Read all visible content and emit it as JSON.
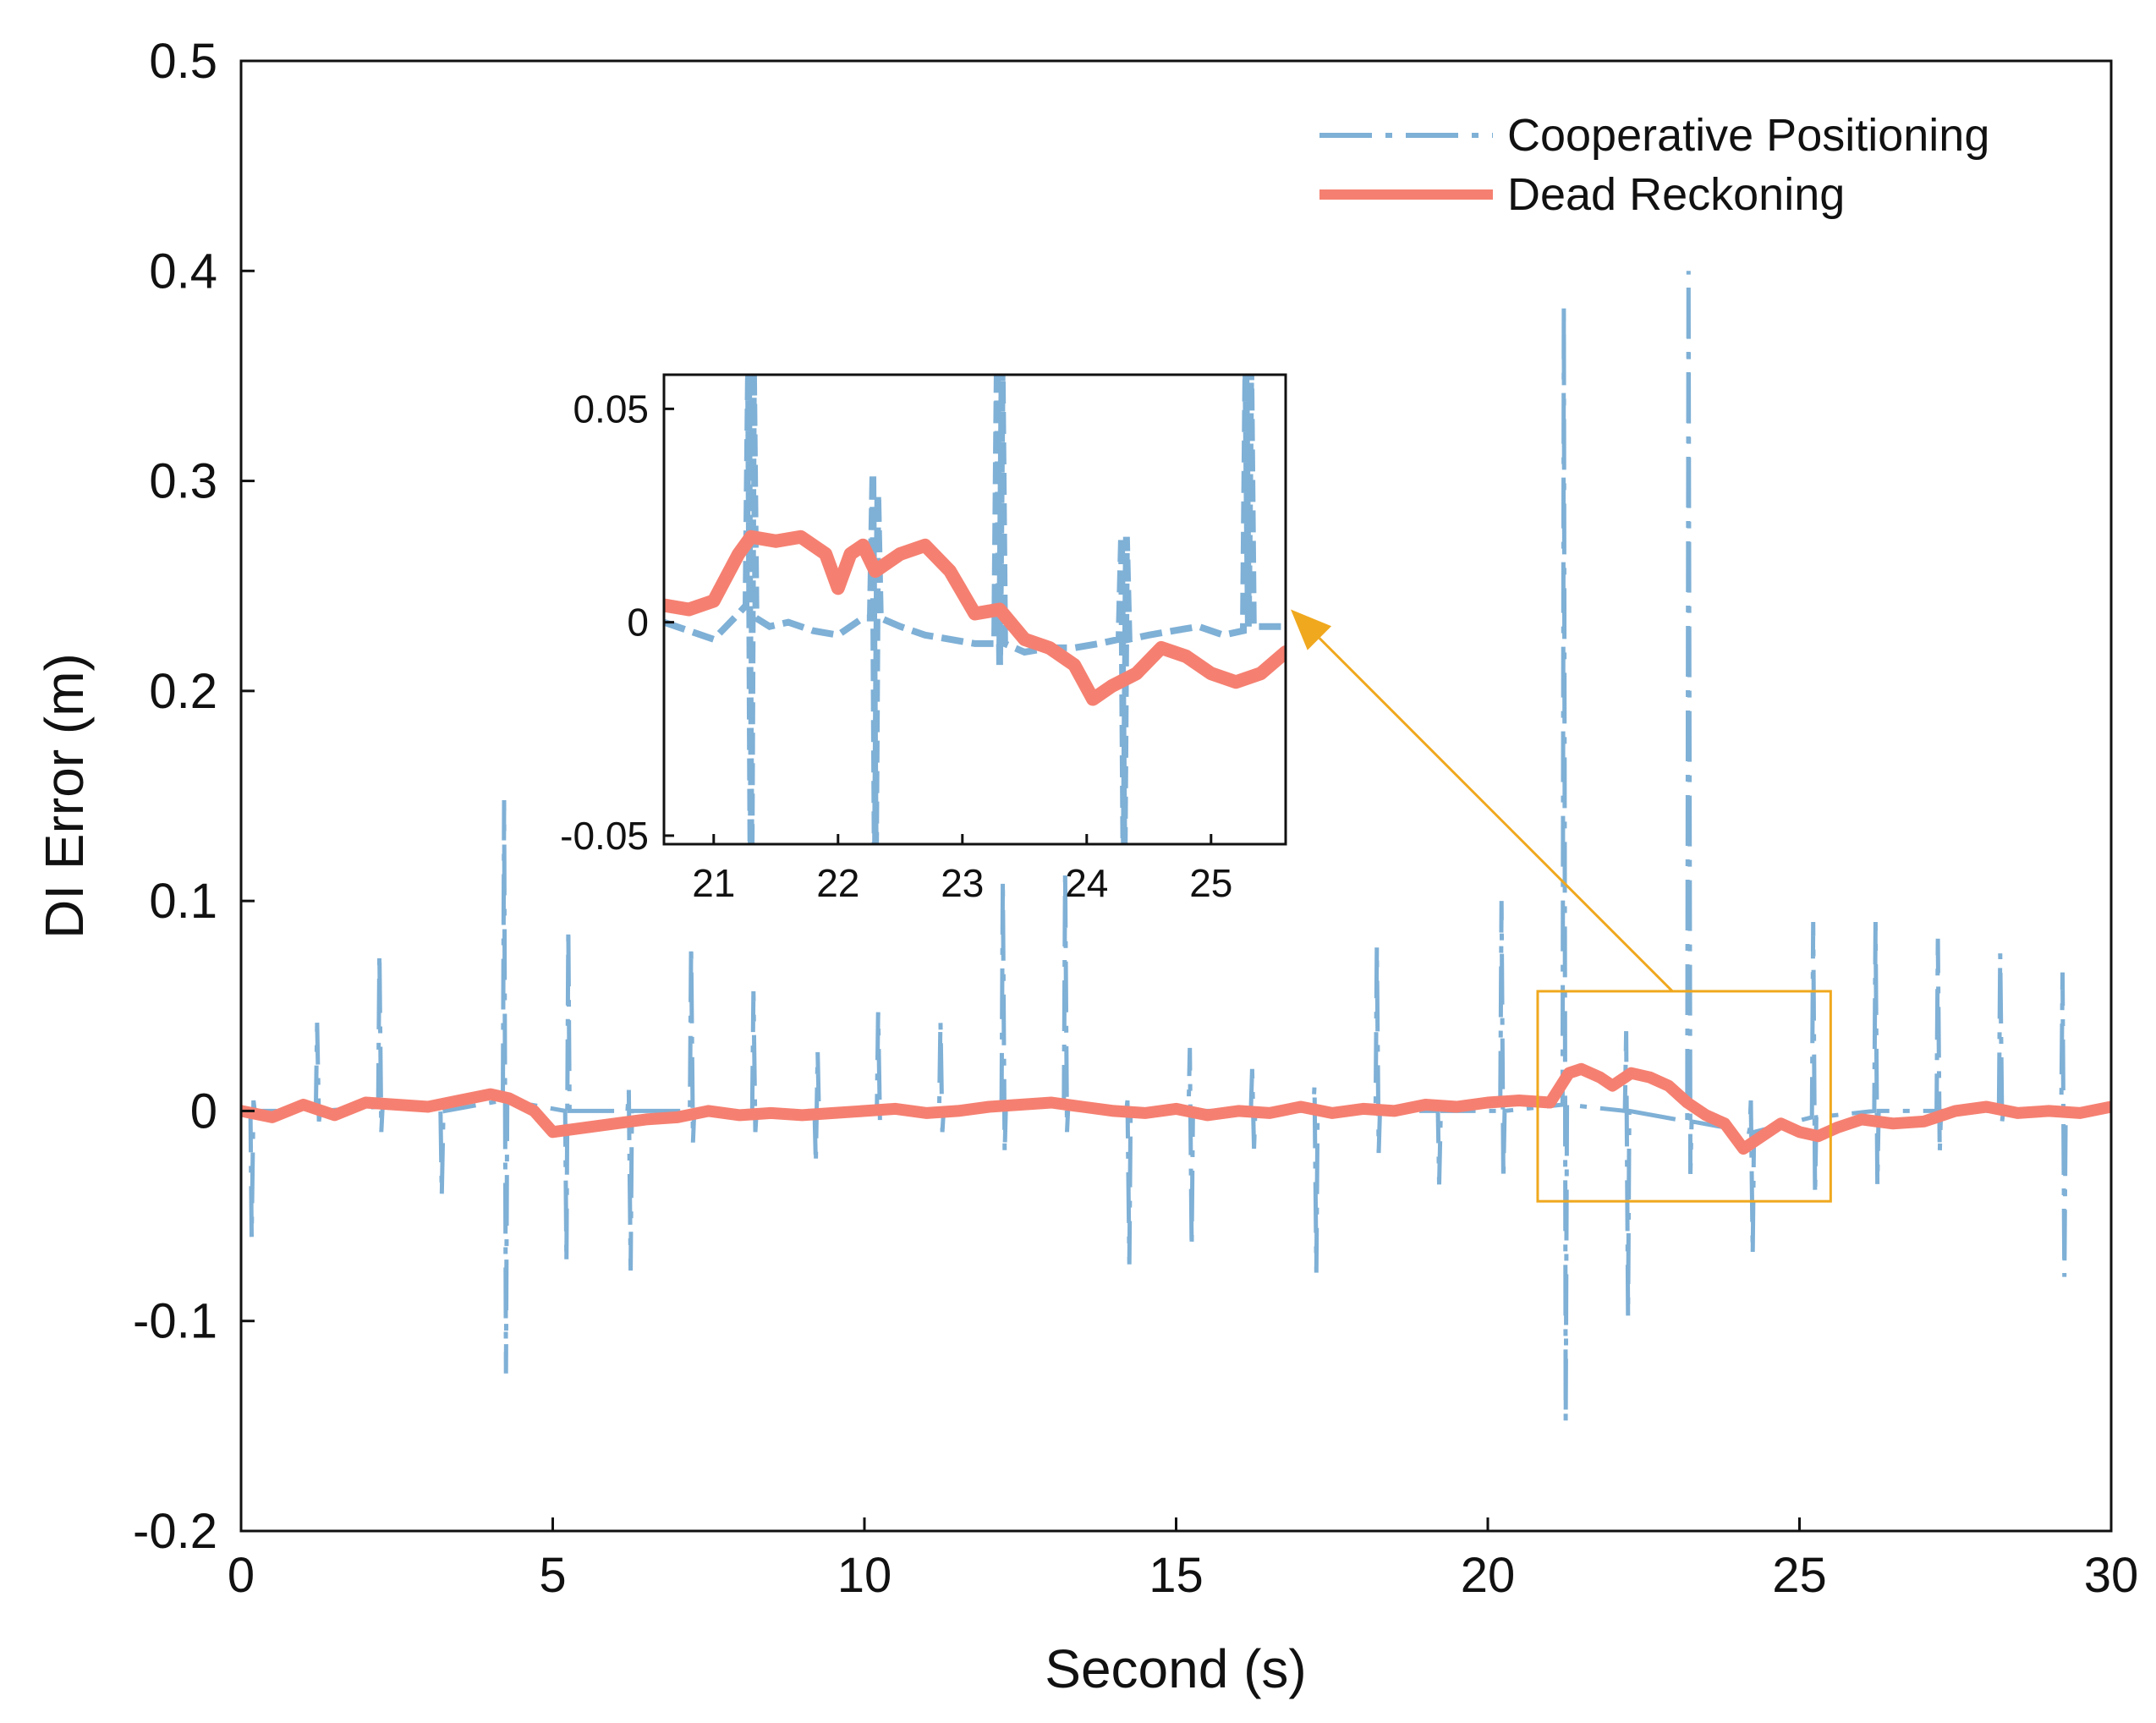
{
  "colors": {
    "cooperative": "#7fb0d6",
    "dead_reckoning": "#f58071",
    "zoom_box": "#f0a81e",
    "axis": "#111111"
  },
  "chart_data": [
    {
      "id": "main",
      "type": "line",
      "xlabel": "Second (s)",
      "ylabel": "DI Error (m)",
      "xlim": [
        0,
        30
      ],
      "ylim": [
        -0.2,
        0.5
      ],
      "xticks": [
        0,
        5,
        10,
        15,
        20,
        25,
        30
      ],
      "xtick_labels": [
        "0",
        "5",
        "10",
        "15",
        "20",
        "25",
        "30"
      ],
      "yticks": [
        -0.2,
        -0.1,
        0,
        0.1,
        0.2,
        0.3,
        0.4,
        0.5
      ],
      "ytick_labels": [
        "-0.2",
        "-0.1",
        "0",
        "0.1",
        "0.2",
        "0.3",
        "0.4",
        "0.5"
      ],
      "legend": {
        "position": "top-right",
        "entries": [
          "Cooperative Positioning",
          "Dead Reckoning"
        ]
      },
      "series": [
        {
          "name": "Cooperative Positioning",
          "style": "dash-dot",
          "x": [
            0,
            0.15,
            0.17,
            0.2,
            0.22,
            1.2,
            1.22,
            1.25,
            1.27,
            2.2,
            2.22,
            2.25,
            2.27,
            3.2,
            3.22,
            3.25,
            3.27,
            4.2,
            4.22,
            4.25,
            4.27,
            5.2,
            5.22,
            5.25,
            5.27,
            6.2,
            6.22,
            6.25,
            6.27,
            7.2,
            7.22,
            7.25,
            7.27,
            8.2,
            8.22,
            8.25,
            8.27,
            9.2,
            9.22,
            9.25,
            9.27,
            10.2,
            10.22,
            10.25,
            10.27,
            11.2,
            11.22,
            11.25,
            11.27,
            12.2,
            12.22,
            12.25,
            12.27,
            13.2,
            13.22,
            13.25,
            13.27,
            14.2,
            14.22,
            14.25,
            14.27,
            15.2,
            15.22,
            15.25,
            15.27,
            16.2,
            16.22,
            16.25,
            16.27,
            17.2,
            17.22,
            17.25,
            17.27,
            18.2,
            18.22,
            18.25,
            18.27,
            19.2,
            19.22,
            19.25,
            19.27,
            20.2,
            20.22,
            20.25,
            20.27,
            21.2,
            21.22,
            21.25,
            21.27,
            22.2,
            22.22,
            22.25,
            22.27,
            23.2,
            23.22,
            23.25,
            23.27,
            24.2,
            24.22,
            24.25,
            24.27,
            25.2,
            25.22,
            25.25,
            25.27,
            26.2,
            26.22,
            26.25,
            26.27,
            27.2,
            27.22,
            27.25,
            27.27,
            28.2,
            28.22,
            28.25,
            28.27,
            29.2,
            29.22,
            29.25,
            29.27,
            30
          ],
          "y": [
            0,
            0,
            -0.06,
            0.005,
            0,
            0,
            0.042,
            -0.005,
            0,
            0.002,
            0.075,
            -0.01,
            0.002,
            0,
            -0.04,
            0.005,
            0,
            0.005,
            0.148,
            -0.125,
            0.005,
            0,
            -0.072,
            0.087,
            0,
            0,
            0.01,
            -0.076,
            0,
            0,
            0.079,
            -0.015,
            0,
            0,
            0.057,
            -0.01,
            0,
            0,
            -0.025,
            0.028,
            0,
            0,
            0.047,
            -0.005,
            0,
            0,
            0.043,
            -0.01,
            0,
            0.003,
            0.11,
            -0.02,
            0.003,
            0.003,
            0.115,
            -0.01,
            0.003,
            0,
            0.005,
            -0.073,
            0,
            0,
            0.03,
            -0.065,
            0,
            0,
            0.02,
            -0.018,
            0,
            0,
            0.012,
            -0.077,
            0,
            0,
            0.078,
            -0.02,
            0,
            0,
            -0.035,
            0.005,
            0,
            0,
            0.1,
            -0.033,
            0,
            0.003,
            0.384,
            -0.148,
            0.003,
            0,
            0.038,
            -0.098,
            0,
            -0.005,
            0.4,
            -0.03,
            -0.005,
            -0.01,
            0.005,
            -0.068,
            -0.01,
            -0.003,
            0.09,
            -0.04,
            -0.003,
            0,
            0.09,
            -0.035,
            0,
            0,
            0.082,
            -0.02,
            0,
            0,
            0.075,
            -0.005,
            0,
            0,
            0.066,
            -0.079,
            0,
            0
          ]
        },
        {
          "name": "Dead Reckoning",
          "style": "solid",
          "x": [
            0,
            0.5,
            1,
            1.5,
            2,
            2.5,
            3,
            3.5,
            4,
            4.3,
            4.7,
            5,
            5.5,
            6,
            6.5,
            7,
            7.5,
            8,
            8.5,
            9,
            9.5,
            10,
            10.5,
            11,
            11.5,
            12,
            12.5,
            13,
            13.5,
            14,
            14.5,
            15,
            15.5,
            16,
            16.5,
            17,
            17.5,
            18,
            18.5,
            19,
            19.5,
            20,
            20.5,
            21,
            21.3,
            21.5,
            21.8,
            22,
            22.3,
            22.6,
            22.9,
            23.2,
            23.5,
            23.8,
            24.1,
            24.4,
            24.7,
            25,
            25.3,
            25.6,
            26,
            26.5,
            27,
            27.5,
            28,
            28.5,
            29,
            29.5,
            30
          ],
          "y": [
            0,
            -0.003,
            0.003,
            -0.002,
            0.004,
            0.003,
            0.002,
            0.005,
            0.008,
            0.006,
            0,
            -0.01,
            -0.008,
            -0.006,
            -0.004,
            -0.003,
            0,
            -0.002,
            -0.001,
            -0.002,
            -0.001,
            0,
            0.001,
            -0.001,
            0,
            0.002,
            0.003,
            0.004,
            0.002,
            0,
            -0.001,
            0.001,
            -0.002,
            0,
            -0.001,
            0.002,
            -0.001,
            0.001,
            0,
            0.003,
            0.002,
            0.004,
            0.005,
            0.004,
            0.018,
            0.02,
            0.016,
            0.012,
            0.018,
            0.016,
            0.012,
            0.004,
            -0.002,
            -0.006,
            -0.018,
            -0.012,
            -0.006,
            -0.01,
            -0.012,
            -0.008,
            -0.004,
            -0.006,
            -0.005,
            0,
            0.002,
            -0.001,
            0,
            -0.001,
            0.002
          ]
        }
      ],
      "zoom_region": {
        "x": [
          20.8,
          25.5
        ],
        "y": [
          -0.043,
          0.057
        ]
      }
    },
    {
      "id": "inset",
      "type": "line",
      "xlim": [
        20.6,
        25.6
      ],
      "ylim": [
        -0.052,
        0.058
      ],
      "xticks": [
        21,
        22,
        23,
        24,
        25
      ],
      "xtick_labels": [
        "21",
        "22",
        "23",
        "24",
        "25"
      ],
      "yticks": [
        -0.05,
        0,
        0.05
      ],
      "ytick_labels": [
        "-0.05",
        "0",
        "0.05"
      ],
      "series": [
        {
          "name": "Cooperative Positioning",
          "style": "dashed",
          "x": [
            20.6,
            20.8,
            21,
            21.2,
            21.26,
            21.28,
            21.3,
            21.32,
            21.34,
            21.45,
            21.6,
            21.8,
            22,
            22.2,
            22.26,
            22.28,
            22.3,
            22.32,
            22.34,
            22.5,
            22.7,
            22.9,
            23.1,
            23.26,
            23.28,
            23.3,
            23.32,
            23.34,
            23.5,
            23.7,
            23.9,
            24.1,
            24.26,
            24.28,
            24.3,
            24.32,
            24.34,
            24.5,
            24.7,
            24.9,
            25.1,
            25.26,
            25.28,
            25.3,
            25.32,
            25.34,
            25.45,
            25.6
          ],
          "y": [
            0,
            -0.002,
            -0.004,
            0.002,
            0.004,
            0.06,
            -0.06,
            0.06,
            0.001,
            -0.001,
            0,
            -0.002,
            -0.003,
            0.001,
            0.001,
            0.035,
            -0.06,
            0.03,
            0.001,
            -0.001,
            -0.003,
            -0.004,
            -0.005,
            -0.005,
            0.06,
            -0.01,
            0.06,
            -0.005,
            -0.007,
            -0.006,
            -0.006,
            -0.005,
            -0.004,
            0.02,
            -0.06,
            0.02,
            -0.004,
            -0.003,
            -0.002,
            -0.001,
            -0.003,
            -0.002,
            0.06,
            -0.001,
            0.06,
            -0.001,
            -0.001,
            -0.001
          ]
        },
        {
          "name": "Dead Reckoning",
          "style": "solid",
          "x": [
            20.6,
            20.8,
            21,
            21.2,
            21.3,
            21.5,
            21.7,
            21.9,
            22,
            22.1,
            22.2,
            22.3,
            22.5,
            22.7,
            22.9,
            23.1,
            23.3,
            23.5,
            23.7,
            23.9,
            24.05,
            24.2,
            24.4,
            24.6,
            24.8,
            25,
            25.2,
            25.4,
            25.6
          ],
          "y": [
            0.004,
            0.003,
            0.005,
            0.016,
            0.02,
            0.019,
            0.02,
            0.016,
            0.008,
            0.016,
            0.018,
            0.012,
            0.016,
            0.018,
            0.012,
            0.002,
            0.003,
            -0.004,
            -0.006,
            -0.01,
            -0.018,
            -0.015,
            -0.012,
            -0.006,
            -0.008,
            -0.012,
            -0.014,
            -0.012,
            -0.007
          ]
        }
      ]
    }
  ]
}
